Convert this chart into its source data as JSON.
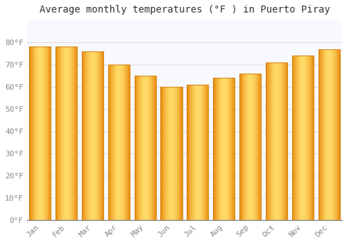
{
  "title": "Average monthly temperatures (°F ) in Puerto Piray",
  "months": [
    "Jan",
    "Feb",
    "Mar",
    "Apr",
    "May",
    "Jun",
    "Jul",
    "Aug",
    "Sep",
    "Oct",
    "Nov",
    "Dec"
  ],
  "values": [
    78,
    78,
    76,
    70,
    65,
    60,
    61,
    64,
    66,
    71,
    74,
    77
  ],
  "bar_color_center": "#FFD966",
  "bar_color_edge": "#E8890C",
  "background_color": "#FFFFFF",
  "plot_bg_color": "#F8F8FF",
  "grid_color": "#DDDDDD",
  "ylim": [
    0,
    90
  ],
  "yticks": [
    0,
    10,
    20,
    30,
    40,
    50,
    60,
    70,
    80
  ],
  "title_fontsize": 10,
  "tick_fontsize": 8,
  "bar_width": 0.82
}
